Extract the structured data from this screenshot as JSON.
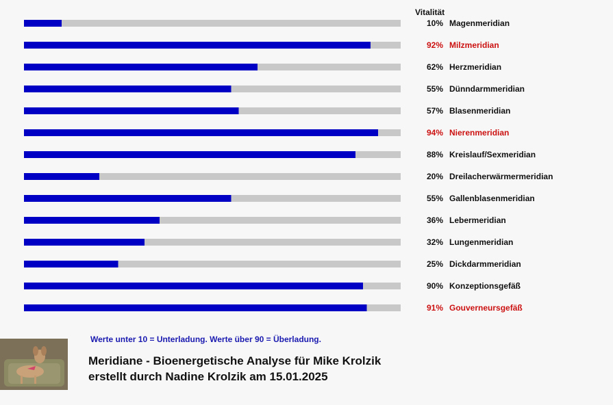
{
  "chart_data": {
    "type": "bar",
    "orientation": "horizontal",
    "title": "Vitalität",
    "categories": [
      "Magenmeridian",
      "Milzmeridian",
      "Herzmeridian",
      "Dünndarmmeridian",
      "Blasenmeridian",
      "Nierenmeridian",
      "Kreislauf/Sexmeridian",
      "Dreilacherwärmermeridian",
      "Gallenblasenmeridian",
      "Lebermeridian",
      "Lungenmeridian",
      "Dickdarmmeridian",
      "Konzeptionsgefäß",
      "Gouverneursgefäß"
    ],
    "values": [
      10,
      92,
      62,
      55,
      57,
      94,
      88,
      20,
      55,
      36,
      32,
      25,
      90,
      91
    ],
    "value_labels": [
      "10%",
      "92%",
      "62%",
      "55%",
      "57%",
      "94%",
      "88%",
      "20%",
      "55%",
      "36%",
      "32%",
      "25%",
      "90%",
      "91%"
    ],
    "xlim": [
      0,
      100
    ],
    "colors": {
      "bar": "#0000c4",
      "track": "#c8c8c8",
      "label_normal": "#111111",
      "label_alert": "#cc1111"
    },
    "alert_threshold": 90
  },
  "note": "Werte unter 10 = Unterladung. Werte über 90 = Überladung.",
  "title_line1": "Meridiane - Bioenergetische Analyse für Mike Krolzik",
  "title_line2": "erstellt durch Nadine Krolzik am 15.01.2025"
}
